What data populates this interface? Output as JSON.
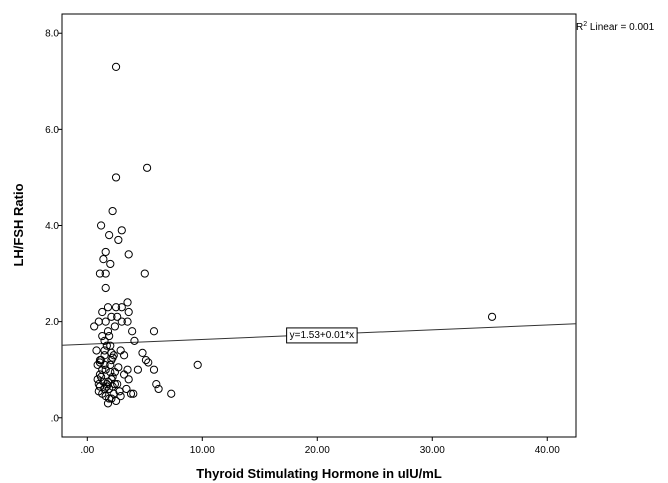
{
  "chart_data": {
    "type": "scatter",
    "title": "",
    "xlabel": "Thyroid Stimulating Hormone in uIU/mL",
    "ylabel": "LH/FSH Ratio",
    "xlim": [
      -2.2,
      42.5
    ],
    "ylim": [
      -0.4,
      8.4
    ],
    "x_ticks": [
      0,
      10,
      20,
      30,
      40
    ],
    "x_tick_labels": [
      ".00",
      "10.00",
      "20.00",
      "30.00",
      "40.00"
    ],
    "y_ticks": [
      0,
      2,
      4,
      6,
      8
    ],
    "y_tick_labels": [
      ".0",
      "2.0",
      "4.0",
      "6.0",
      "8.0"
    ],
    "grid": false,
    "r2_label": {
      "base": "R",
      "sup": "2",
      "rest": " Linear = 0.001"
    },
    "fit_line": {
      "intercept": 1.53,
      "slope": 0.01,
      "label": "y=1.53+0.01*x",
      "label_at_x": 20.4
    },
    "x": [
      2.5,
      5.2,
      2.5,
      2.2,
      1.2,
      3.0,
      1.9,
      2.7,
      1.6,
      3.6,
      1.4,
      2.0,
      1.6,
      1.1,
      1.6,
      5.0,
      1.8,
      2.5,
      3.0,
      3.5,
      3.6,
      1.3,
      2.6,
      2.1,
      3.0,
      1.6,
      3.5,
      3.9,
      2.4,
      0.6,
      1.0,
      1.8,
      5.8,
      1.3,
      1.9,
      4.1,
      1.5,
      2.0,
      1.7,
      1.5,
      2.9,
      2.1,
      4.8,
      0.8,
      1.5,
      2.3,
      3.2,
      2.2,
      1.2,
      5.1,
      1.1,
      5.3,
      2.0,
      1.5,
      0.9,
      9.6,
      2.7,
      3.5,
      1.3,
      1.6,
      2.0,
      2.4,
      1.1,
      5.8,
      4.4,
      3.2,
      1.2,
      2.1,
      0.9,
      3.6,
      1.8,
      1.4,
      2.6,
      1.7,
      6.0,
      1.1,
      2.2,
      1.5,
      3.4,
      1.9,
      2.8,
      1.0,
      6.2,
      4.0,
      7.3,
      2.3,
      1.6,
      2.9,
      1.3,
      2.1,
      1.9,
      2.5,
      3.8,
      2.1,
      1.8,
      35.2,
      1.1,
      2.4,
      1.7,
      1.0,
      2.2
    ],
    "y": [
      7.3,
      5.2,
      5.0,
      4.3,
      4.0,
      3.9,
      3.8,
      3.7,
      3.45,
      3.4,
      3.3,
      3.2,
      3.0,
      3.0,
      2.7,
      3.0,
      2.3,
      2.3,
      2.3,
      2.4,
      2.2,
      2.2,
      2.1,
      2.1,
      2.0,
      2.0,
      2.0,
      1.8,
      1.9,
      1.9,
      2.0,
      1.8,
      1.8,
      1.7,
      1.7,
      1.6,
      1.6,
      1.5,
      1.5,
      1.4,
      1.4,
      1.35,
      1.35,
      1.4,
      1.3,
      1.3,
      1.3,
      1.25,
      1.2,
      1.2,
      1.15,
      1.15,
      1.1,
      1.1,
      1.1,
      1.1,
      1.05,
      1.0,
      1.0,
      1.0,
      0.95,
      0.95,
      0.9,
      1.0,
      1.0,
      0.9,
      0.85,
      0.8,
      0.8,
      0.8,
      0.75,
      0.75,
      0.7,
      0.7,
      0.7,
      0.65,
      0.65,
      0.6,
      0.6,
      0.6,
      0.55,
      0.55,
      0.6,
      0.5,
      0.5,
      0.5,
      0.45,
      0.45,
      0.5,
      0.4,
      0.4,
      0.35,
      0.5,
      1.2,
      0.3,
      2.1,
      1.2,
      0.7,
      0.65,
      0.7,
      0.85
    ]
  }
}
